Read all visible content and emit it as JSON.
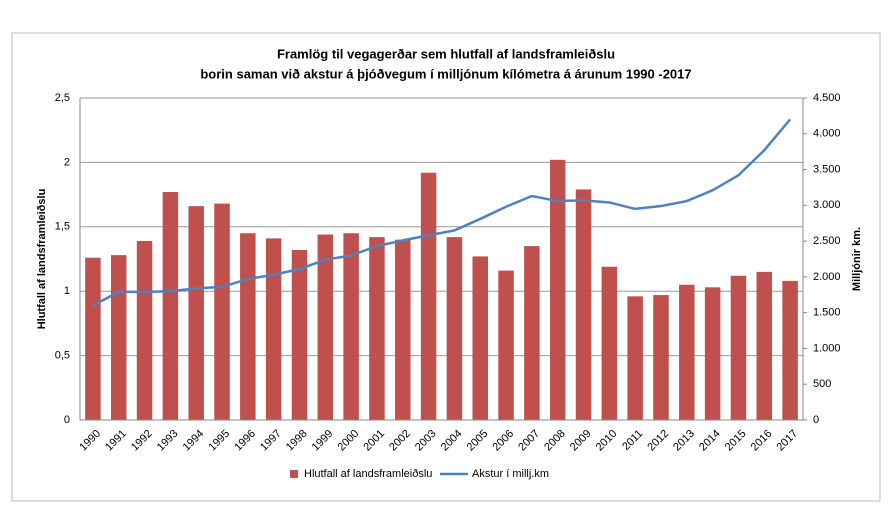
{
  "chart_data": {
    "type": "bar",
    "title": "Framlög til vegagerðar sem hlutfall af landsframleiðslu",
    "subtitle": "borin saman við  akstur á þjóðvegum  í milljónum kílómetra á árunum 1990 -2017",
    "y_label": "Hlutfall af landsframleiðslu",
    "y2_label": "Milljónir km.",
    "categories": [
      "1990",
      "1991",
      "1992",
      "1993",
      "1994",
      "1995",
      "1996",
      "1997",
      "1998",
      "1999",
      "2000",
      "2001",
      "2002",
      "2003",
      "2004",
      "2005",
      "2006",
      "2007",
      "2008",
      "2009",
      "2010",
      "2011",
      "2012",
      "2013",
      "2014",
      "2015",
      "2016",
      "2017"
    ],
    "series": [
      {
        "name": "Hlutfall  af landsframleiðslu",
        "type": "bar",
        "color": "#c0504d",
        "values": [
          1.26,
          1.28,
          1.39,
          1.77,
          1.66,
          1.68,
          1.45,
          1.41,
          1.32,
          1.44,
          1.45,
          1.42,
          1.4,
          1.92,
          1.42,
          1.27,
          1.16,
          1.35,
          2.02,
          1.79,
          1.19,
          0.96,
          0.97,
          1.05,
          1.03,
          1.12,
          1.15,
          1.08
        ]
      },
      {
        "name": "Akstur í millj.km",
        "type": "line",
        "color": "#4f81bd",
        "axis": "y2",
        "values": [
          1600,
          1790,
          1790,
          1800,
          1840,
          1860,
          1970,
          2030,
          2110,
          2240,
          2300,
          2430,
          2510,
          2580,
          2650,
          2810,
          2980,
          3130,
          3060,
          3070,
          3040,
          2950,
          2990,
          3060,
          3210,
          3420,
          3770,
          4200
        ]
      }
    ],
    "ylim": [
      0,
      2.5
    ],
    "yticks": [
      0,
      {
        "value": 0.5,
        "label": "0,5"
      },
      1,
      {
        "value": 1.5,
        "label": "1,5"
      },
      2,
      {
        "value": 2.5,
        "label": "2,5"
      }
    ],
    "y2lim": [
      0,
      4500
    ],
    "y2ticks": [
      0,
      500,
      {
        "value": 1000,
        "label": "1.000"
      },
      {
        "value": 1500,
        "label": "1.500"
      },
      {
        "value": 2000,
        "label": "2.000"
      },
      {
        "value": 2500,
        "label": "2.500"
      },
      {
        "value": 3000,
        "label": "3.000"
      },
      {
        "value": 3500,
        "label": "3.500"
      },
      {
        "value": 4000,
        "label": "4.000"
      },
      {
        "value": 4500,
        "label": "4.500"
      }
    ],
    "grid": true,
    "legend": "bottom"
  }
}
